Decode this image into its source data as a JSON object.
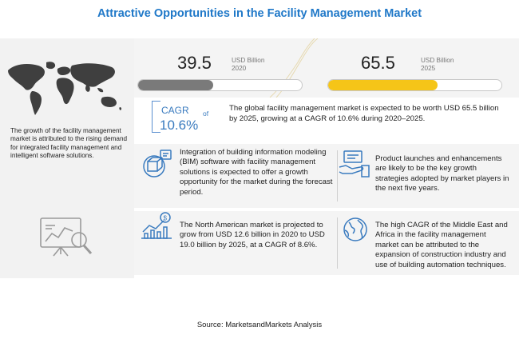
{
  "header": {
    "title": "Attractive Opportunities in the Facility Management Market"
  },
  "left_panel": {
    "description": "The growth of the facility management market is attributed to the rising demand for integrated facility management and intelligent software solutions.",
    "icons": [
      "world-map-icon",
      "analysis-chart-icon"
    ]
  },
  "market_size": {
    "year_2020": {
      "value": "39.5",
      "unit": "USD Billion",
      "year": "2020",
      "bar_fill_fraction": 0.46,
      "bar_color": "#7a7a7a"
    },
    "year_2025": {
      "value": "65.5",
      "unit": "USD Billion",
      "year": "2025",
      "bar_fill_fraction": 0.63,
      "bar_color": "#f5c518"
    }
  },
  "cagr": {
    "label": "CAGR",
    "of": "of",
    "value": "10.6%",
    "summary": "The global facility management market is expected to be worth USD 65.5 billion by 2025, growing at a CAGR of 10.6% during 2020–2025."
  },
  "insights": [
    {
      "icon": "bim-software-icon",
      "text": "Integration of building information modeling (BIM) software with facility management solutions is expected to offer a growth opportunity for the market during the forecast period."
    },
    {
      "icon": "product-launch-icon",
      "text": "Product launches and enhancements are likely to be the key growth strategies adopted by market players in the next five years."
    },
    {
      "icon": "growth-chart-icon",
      "text": "The North American market is projected to grow from USD 12.6 billion in 2020 to USD 19.0 billion by 2025,  at a CAGR of 8.6%."
    },
    {
      "icon": "globe-icon",
      "text": "The high CAGR of the Middle East and Africa in the facility management market can be attributed to the expansion of construction industry and use of building automation techniques."
    }
  ],
  "footer": {
    "source": "Source: MarketsandMarkets Analysis"
  },
  "colors": {
    "title": "#1f78c8",
    "accent_blue": "#3a7bbf",
    "yellow": "#f5c518",
    "gray_bar": "#7a7a7a",
    "panel_bg": "#f2f2f2"
  }
}
